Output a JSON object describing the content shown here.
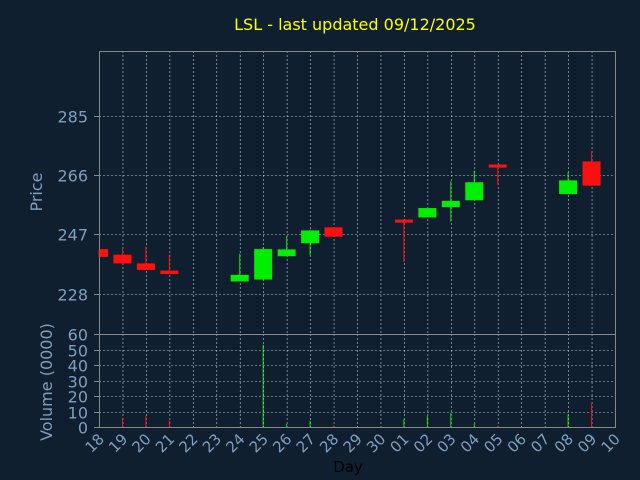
{
  "chart_data": {
    "type": "candlestick",
    "title": "LSL - last updated 09/12/2025",
    "xlabel": "Day",
    "ylabel_price": "Price",
    "ylabel_volume": "Volume (0000)",
    "categories": [
      "18",
      "19",
      "20",
      "21",
      "22",
      "23",
      "24",
      "25",
      "26",
      "27",
      "28",
      "29",
      "30",
      "01",
      "02",
      "03",
      "04",
      "05",
      "06",
      "07",
      "08",
      "09",
      "10"
    ],
    "price_ylim": [
      215,
      306
    ],
    "price_ticks": [
      228,
      247,
      266,
      285
    ],
    "volume_ylim": [
      0,
      60
    ],
    "volume_ticks": [
      0,
      10,
      20,
      30,
      40,
      50,
      60
    ],
    "grid": true,
    "colors": {
      "background": "#0f1f30",
      "up": "#00ee00",
      "down": "#ff1010",
      "grid": "#ffffff",
      "axis": "#888888",
      "title": "#ffff00",
      "label": "#7f9fbf"
    },
    "candles": [
      {
        "x": "18",
        "open": 242.3,
        "close": 239.8,
        "high": 242.3,
        "low": 239.8
      },
      {
        "x": "19",
        "open": 240.5,
        "close": 237.7,
        "high": 242.5,
        "low": 237.7
      },
      {
        "x": "20",
        "open": 237.7,
        "close": 235.6,
        "high": 243.0,
        "low": 235.6
      },
      {
        "x": "21",
        "open": 235.4,
        "close": 234.3,
        "high": 240.5,
        "low": 234.3
      },
      {
        "x": "24",
        "open": 231.9,
        "close": 234.0,
        "high": 240.8,
        "low": 231.9
      },
      {
        "x": "25",
        "open": 232.5,
        "close": 242.3,
        "high": 242.9,
        "low": 232.5
      },
      {
        "x": "26",
        "open": 240.0,
        "close": 242.2,
        "high": 246.4,
        "low": 240.0
      },
      {
        "x": "27",
        "open": 244.2,
        "close": 248.3,
        "high": 248.5,
        "low": 240.3
      },
      {
        "x": "28",
        "open": 249.3,
        "close": 246.3,
        "high": 249.3,
        "low": 246.3
      },
      {
        "x": "01",
        "open": 251.8,
        "close": 250.8,
        "high": 251.8,
        "low": 238.2
      },
      {
        "x": "02",
        "open": 252.5,
        "close": 255.5,
        "high": 255.5,
        "low": 252.5
      },
      {
        "x": "03",
        "open": 255.8,
        "close": 257.8,
        "high": 264.1,
        "low": 251.2
      },
      {
        "x": "04",
        "open": 258.0,
        "close": 263.8,
        "high": 267.5,
        "low": 258.0
      },
      {
        "x": "05",
        "open": 269.5,
        "close": 268.5,
        "high": 269.5,
        "low": 263.0
      },
      {
        "x": "08",
        "open": 260.0,
        "close": 264.4,
        "high": 267.0,
        "low": 260.0
      },
      {
        "x": "09",
        "open": 270.5,
        "close": 262.7,
        "high": 273.8,
        "low": 262.7
      }
    ],
    "volume": [
      {
        "x": "18",
        "value": 0,
        "dir": "down"
      },
      {
        "x": "19",
        "value": 6,
        "dir": "down"
      },
      {
        "x": "20",
        "value": 7,
        "dir": "down"
      },
      {
        "x": "21",
        "value": 4,
        "dir": "down"
      },
      {
        "x": "24",
        "value": 0,
        "dir": "up"
      },
      {
        "x": "25",
        "value": 53,
        "dir": "up"
      },
      {
        "x": "26",
        "value": 2,
        "dir": "up"
      },
      {
        "x": "27",
        "value": 4,
        "dir": "up"
      },
      {
        "x": "28",
        "value": 1,
        "dir": "down"
      },
      {
        "x": "01",
        "value": 5,
        "dir": "up"
      },
      {
        "x": "02",
        "value": 7,
        "dir": "up"
      },
      {
        "x": "03",
        "value": 9,
        "dir": "up"
      },
      {
        "x": "04",
        "value": 2,
        "dir": "up"
      },
      {
        "x": "05",
        "value": 1,
        "dir": "down"
      },
      {
        "x": "08",
        "value": 8,
        "dir": "up"
      },
      {
        "x": "09",
        "value": 15,
        "dir": "down"
      }
    ]
  }
}
